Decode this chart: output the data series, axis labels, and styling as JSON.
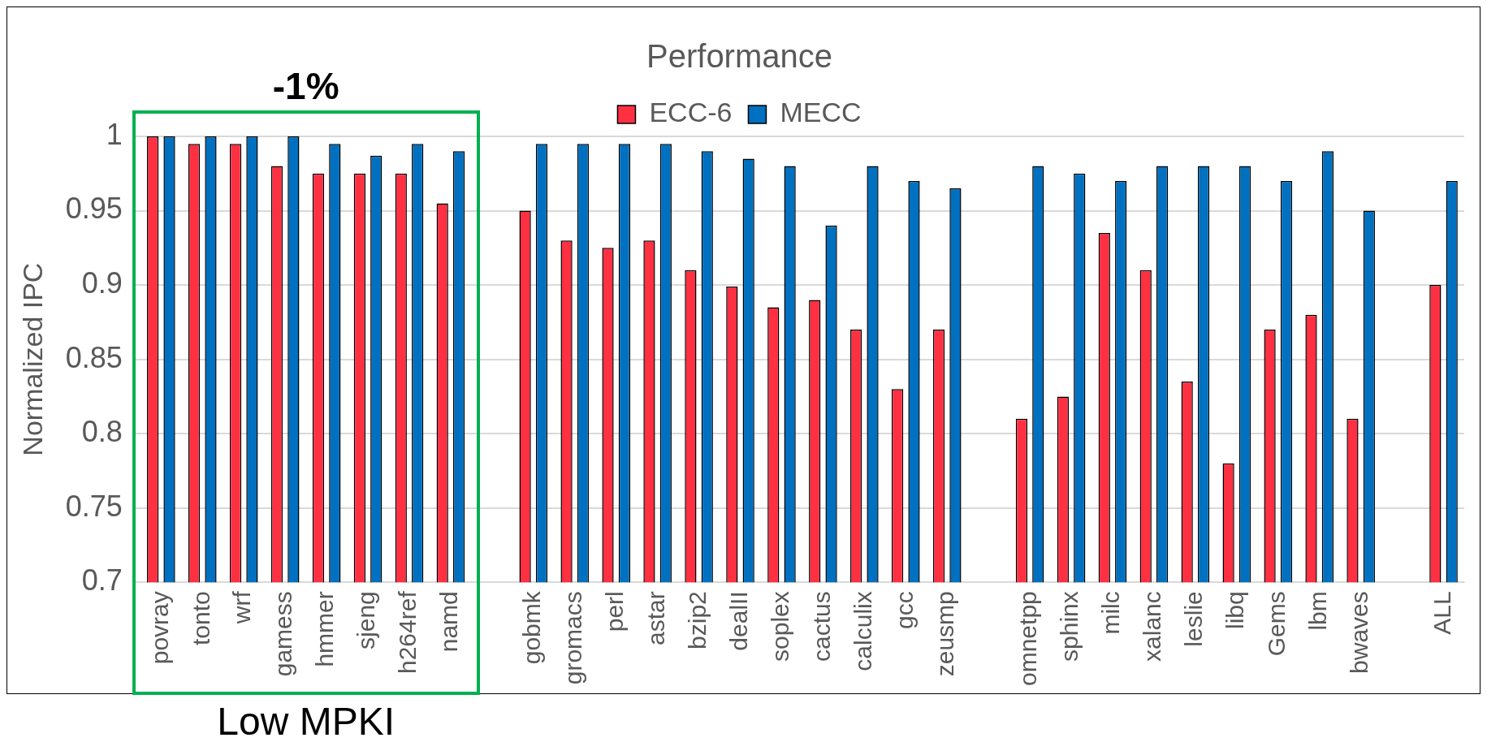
{
  "chart_data": {
    "type": "bar",
    "title": "Performance",
    "ylabel": "Normalized IPC",
    "categories": [
      "povray",
      "tonto",
      "wrf",
      "gamess",
      "hmmer",
      "sjeng",
      "h264ref",
      "namd",
      null,
      "gobmk",
      "gromacs",
      "perl",
      "astar",
      "bzip2",
      "dealII",
      "soplex",
      "cactus",
      "calculix",
      "gcc",
      "zeusmp",
      null,
      "omnetpp",
      "sphinx",
      "milc",
      "xalanc",
      "leslie",
      "libq",
      "Gems",
      "lbm",
      "bwaves",
      null,
      "ALL"
    ],
    "series": [
      {
        "name": "ECC-6",
        "color": "#fe3042",
        "values": [
          1,
          0.995,
          0.995,
          0.98,
          0.975,
          0.975,
          0.975,
          0.955,
          null,
          0.95,
          0.93,
          0.925,
          0.93,
          0.91,
          0.899,
          0.885,
          0.89,
          0.87,
          0.83,
          0.87,
          null,
          0.81,
          0.825,
          0.935,
          0.91,
          0.835,
          0.78,
          0.87,
          0.88,
          0.81,
          null,
          0.9
        ]
      },
      {
        "name": "MECC",
        "color": "#0070c0",
        "values": [
          1,
          1,
          1,
          1,
          0.995,
          0.987,
          0.995,
          0.99,
          null,
          0.995,
          0.995,
          0.995,
          0.995,
          0.99,
          0.985,
          0.98,
          0.94,
          0.98,
          0.97,
          0.965,
          null,
          0.98,
          0.975,
          0.97,
          0.98,
          0.98,
          0.98,
          0.97,
          0.99,
          0.95,
          null,
          0.97
        ]
      }
    ],
    "ylim": [
      0.7,
      1
    ],
    "yticks": [
      0.7,
      0.75,
      0.8,
      0.85,
      0.9,
      0.95,
      1
    ],
    "grid": "y",
    "legend": "top",
    "annotations": [
      "-1%",
      "Low MPKI"
    ]
  }
}
